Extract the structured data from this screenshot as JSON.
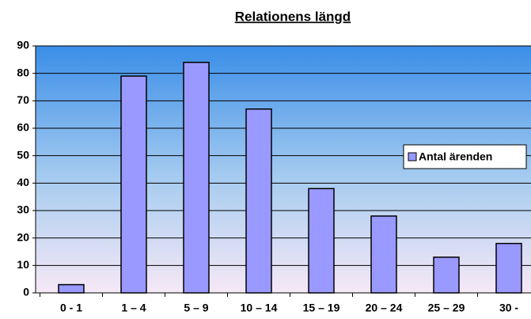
{
  "chart_data": {
    "type": "bar",
    "title": "Relationens längd",
    "categories": [
      "0 - 1",
      "1 – 4",
      "5 – 9",
      "10 – 14",
      "15 – 19",
      "20 – 24",
      "25 – 29",
      "30 -"
    ],
    "series": [
      {
        "name": "Antal ärenden",
        "color": "#9999ff",
        "values": [
          3,
          79,
          84,
          67,
          38,
          28,
          13,
          18
        ]
      }
    ],
    "ylim": [
      0,
      90
    ],
    "yticks": [
      0,
      10,
      20,
      30,
      40,
      50,
      60,
      70,
      80,
      90
    ],
    "grid": true,
    "legend": "right"
  }
}
